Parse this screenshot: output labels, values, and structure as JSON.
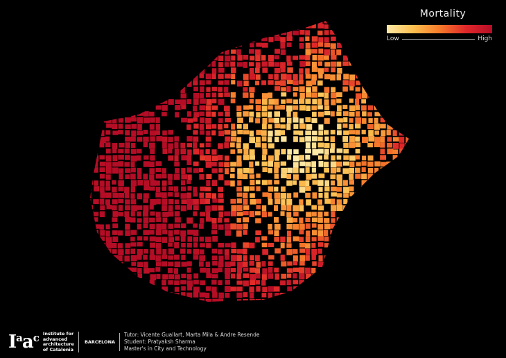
{
  "legend": {
    "title": "Mortality",
    "low_label": "Low",
    "high_label": "High",
    "colors": [
      "#fde9a6",
      "#fcbf4f",
      "#f77b2a",
      "#e0282a",
      "#b50d26"
    ]
  },
  "footer": {
    "logo_text": "Iaac",
    "institute": [
      "Institute for",
      "advanced",
      "architecture",
      "of Catalonia"
    ],
    "city": "BARCELONA",
    "credits": [
      "Tutor: Vicente Guallart, Marta Mila & Andre Resende",
      "Student: Pratyaksh Sharma",
      "Master's in City and Technology"
    ]
  }
}
